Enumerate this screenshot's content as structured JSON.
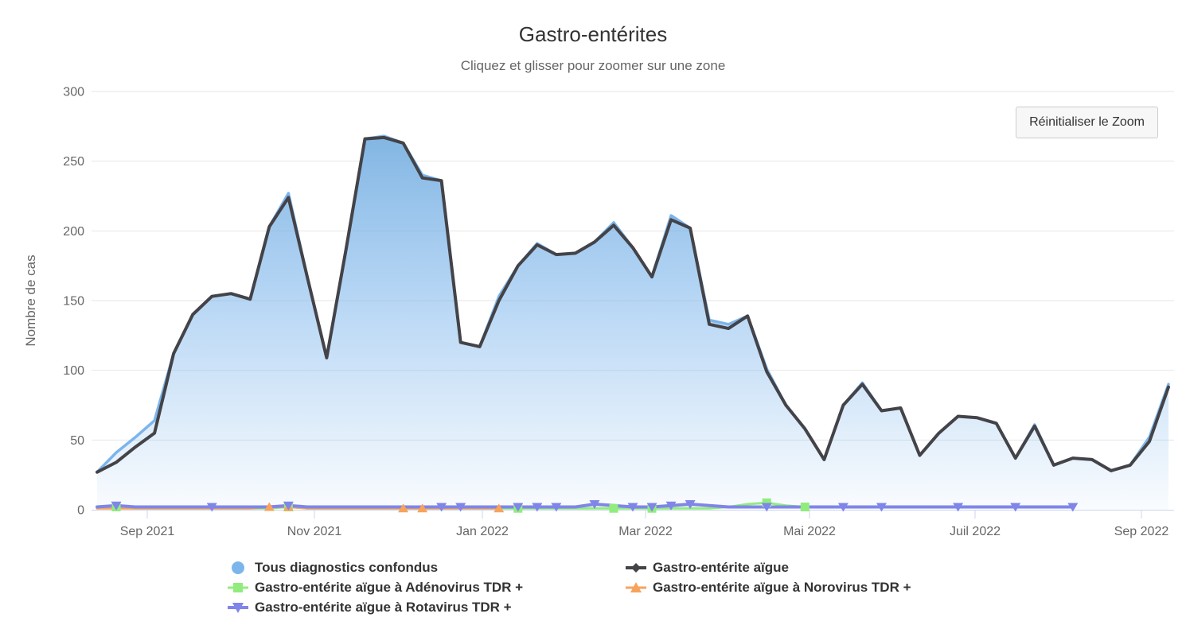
{
  "chart": {
    "reset_zoom_label": "Réinitialiser le Zoom"
  },
  "chart_data": {
    "type": "area",
    "title": "Gastro-entérites",
    "subtitle": "Cliquez et glisser pour zoomer sur une zone",
    "xlabel": "",
    "ylabel": "Nombre de cas",
    "ylim": [
      0,
      300
    ],
    "y_ticks": [
      0,
      50,
      100,
      150,
      200,
      250,
      300
    ],
    "x_tick_labels": [
      "Sep 2021",
      "Nov 2021",
      "Jan 2022",
      "Mar 2022",
      "Mai 2022",
      "Juil 2022",
      "Sep 2022"
    ],
    "x_unit": "semaine",
    "grid": true,
    "legend_position": "bottom",
    "background_color": "#ffffff",
    "grid_color": "#e6e6e6",
    "axis_line_color": "#ccd6eb",
    "text_color": "#666666",
    "series": [
      {
        "key": "tous-diagnostics-confondus",
        "name": "Tous diagnostics confondus",
        "color": "#7cb5ec",
        "render": "area",
        "legend_marker": "circle",
        "line_width": 3.5,
        "start_week": 0,
        "values": [
          27,
          41,
          52,
          64,
          112,
          140,
          153,
          155,
          151,
          203,
          227,
          166,
          109,
          186,
          266,
          268,
          263,
          240,
          236,
          120,
          117,
          153,
          175,
          191,
          183,
          184,
          192,
          206,
          188,
          167,
          211,
          202,
          136,
          133,
          139,
          101,
          75,
          58,
          36,
          75,
          91,
          71,
          73,
          39,
          55,
          67,
          66,
          62,
          37,
          61,
          32,
          37,
          36,
          28,
          32,
          52,
          90
        ],
        "marker_weeks": []
      },
      {
        "key": "gastro-enterite-aigue",
        "name": "Gastro-entérite aïgue",
        "color": "#434348",
        "render": "line",
        "legend_marker": "diamond",
        "line_width": 4,
        "start_week": 0,
        "values": [
          27,
          34,
          45,
          55,
          112,
          140,
          153,
          155,
          151,
          203,
          224,
          166,
          109,
          186,
          266,
          267,
          263,
          238,
          236,
          120,
          117,
          150,
          175,
          190,
          183,
          184,
          192,
          204,
          188,
          167,
          208,
          202,
          133,
          130,
          139,
          99,
          75,
          58,
          36,
          75,
          90,
          71,
          73,
          39,
          55,
          67,
          66,
          62,
          37,
          60,
          32,
          37,
          36,
          28,
          32,
          49,
          88
        ],
        "marker_weeks": []
      },
      {
        "key": "adenovirus-tdr",
        "name": "Gastro-entérite aïgue à Adénovirus TDR +",
        "color": "#90ed7d",
        "render": "line",
        "legend_marker": "square",
        "line_width": 3,
        "start_week": 0,
        "values": [
          1,
          2,
          1,
          1,
          1,
          1,
          1,
          1,
          1,
          1,
          2,
          1,
          1,
          1,
          1,
          1,
          1,
          1,
          1,
          1,
          1,
          1,
          1,
          1,
          1,
          1,
          1,
          1,
          1,
          1,
          1,
          1,
          1,
          2,
          4,
          5,
          3,
          2
        ],
        "marker_weeks": [
          1,
          10,
          22,
          27,
          29,
          35,
          37
        ]
      },
      {
        "key": "norovirus-tdr",
        "name": "Gastro-entérite aïgue à Norovirus TDR +",
        "color": "#f7a35c",
        "render": "line",
        "legend_marker": "triangle-up",
        "line_width": 3,
        "start_week": 0,
        "values": [
          1,
          1,
          1,
          1,
          1,
          1,
          1,
          1,
          1,
          2,
          2,
          1,
          1,
          1,
          1,
          1,
          1,
          1,
          1,
          1,
          1,
          1
        ],
        "marker_weeks": [
          9,
          10,
          16,
          17,
          21
        ]
      },
      {
        "key": "rotavirus-tdr",
        "name": "Gastro-entérite aïgue à Rotavirus TDR +",
        "color": "#8085e9",
        "render": "line",
        "legend_marker": "triangle-down",
        "line_width": 4,
        "start_week": 0,
        "values": [
          2,
          3,
          2,
          2,
          2,
          2,
          2,
          2,
          2,
          2,
          3,
          2,
          2,
          2,
          2,
          2,
          2,
          2,
          2,
          2,
          2,
          2,
          2,
          2,
          2,
          2,
          4,
          3,
          2,
          2,
          3,
          4,
          3,
          2,
          2,
          2,
          2,
          2,
          2,
          2,
          2,
          2,
          2,
          2,
          2,
          2,
          2,
          2,
          2,
          2,
          2,
          2
        ],
        "marker_weeks": [
          1,
          6,
          10,
          18,
          19,
          22,
          23,
          24,
          26,
          28,
          29,
          30,
          31,
          35,
          39,
          41,
          45,
          48,
          51
        ]
      }
    ]
  }
}
